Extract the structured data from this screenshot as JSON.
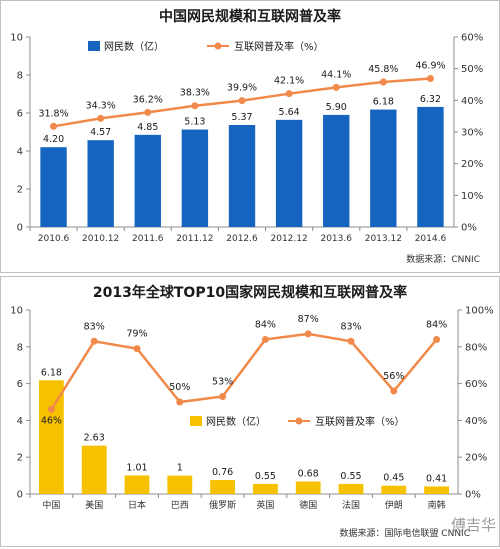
{
  "chart_data": [
    {
      "type": "bar",
      "title": "中国网民规模和互联网普及率",
      "categories": [
        "2010.6",
        "2010.12",
        "2011.6",
        "2011.12",
        "2012.6",
        "2012.12",
        "2013.6",
        "2013.12",
        "2014.6"
      ],
      "series": [
        {
          "name": "网民数（亿）",
          "type": "bar",
          "axis": "left",
          "color": "#1565c0",
          "values": [
            4.2,
            4.57,
            4.85,
            5.13,
            5.37,
            5.64,
            5.9,
            6.18,
            6.32
          ],
          "labels": [
            "4.20",
            "4.57",
            "4.85",
            "5.13",
            "5.37",
            "5.64",
            "5.90",
            "6.18",
            "6.32"
          ]
        },
        {
          "name": "互联网普及率（%）",
          "type": "line",
          "axis": "right",
          "color": "#f0894a",
          "values": [
            31.8,
            34.3,
            36.2,
            38.3,
            39.9,
            42.1,
            44.1,
            45.8,
            46.9
          ],
          "labels": [
            "31.8%",
            "34.3%",
            "36.2%",
            "38.3%",
            "39.9%",
            "42.1%",
            "44.1%",
            "45.8%",
            "46.9%"
          ]
        }
      ],
      "ylim_left": [
        0,
        10
      ],
      "yticks_left": [
        "0",
        "2",
        "4",
        "6",
        "8",
        "10"
      ],
      "ylim_right": [
        0,
        60
      ],
      "yticks_right": [
        "0%",
        "10%",
        "20%",
        "30%",
        "40%",
        "50%",
        "60%"
      ],
      "legend": "top-left",
      "grid": false,
      "source": "数据来源：CNNIC"
    },
    {
      "type": "bar",
      "title": "2013年全球TOP10国家网民规模和互联网普及率",
      "categories": [
        "中国",
        "美国",
        "日本",
        "巴西",
        "俄罗斯",
        "英国",
        "德国",
        "法国",
        "伊朗",
        "南韩"
      ],
      "series": [
        {
          "name": "网民数（亿）",
          "type": "bar",
          "axis": "left",
          "color": "#f6c200",
          "values": [
            6.18,
            2.63,
            1.01,
            1,
            0.76,
            0.55,
            0.68,
            0.55,
            0.45,
            0.41
          ],
          "labels": [
            "6.18",
            "2.63",
            "1.01",
            "1",
            "0.76",
            "0.55",
            "0.68",
            "0.55",
            "0.45",
            "0.41"
          ]
        },
        {
          "name": "互联网普及率（%）",
          "type": "line",
          "axis": "right",
          "color": "#f0894a",
          "values": [
            46,
            83,
            79,
            50,
            53,
            84,
            87,
            83,
            56,
            84
          ],
          "labels": [
            "46%",
            "83%",
            "79%",
            "50%",
            "53%",
            "84%",
            "87%",
            "83%",
            "56%",
            "84%"
          ]
        }
      ],
      "ylim_left": [
        0,
        10
      ],
      "yticks_left": [
        "0",
        "2",
        "4",
        "6",
        "8",
        "10"
      ],
      "ylim_right": [
        0,
        100
      ],
      "yticks_right": [
        "0%",
        "20%",
        "40%",
        "60%",
        "80%",
        "100%"
      ],
      "legend": "center-right",
      "grid": false,
      "source": "数据来源：国际电信联盟 CNNIC"
    }
  ],
  "watermark": "傅吉华"
}
